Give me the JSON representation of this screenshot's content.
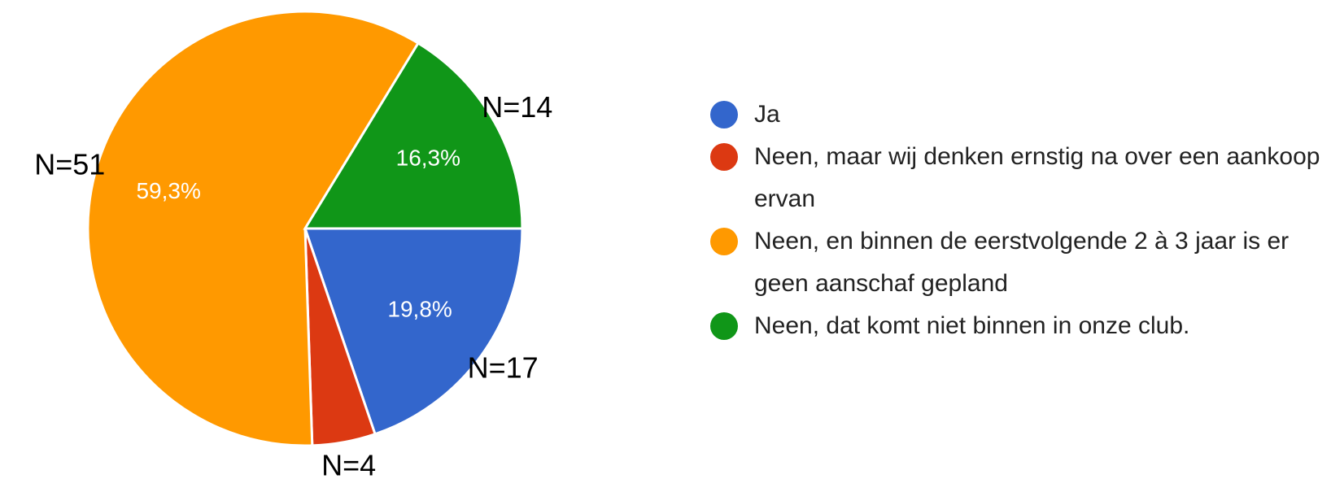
{
  "chart_data": {
    "type": "pie",
    "categories": [
      "Ja",
      "Neen, maar wij denken ernstig na over een aankoop ervan",
      "Neen, en binnen de eerstvolgende 2 à 3 jaar is er geen aanschaf gepland",
      "Neen, dat komt niet binnen in onze club."
    ],
    "values": [
      19.8,
      4.7,
      59.3,
      16.3
    ],
    "value_labels": [
      "19,8%",
      null,
      "59,3%",
      "16,3%"
    ],
    "annotations": [
      "N=17",
      "N=4",
      "N=51",
      "N=14"
    ],
    "colors": [
      "#3366cc",
      "#dc3912",
      "#ff9900",
      "#109618"
    ],
    "legend": "right"
  }
}
